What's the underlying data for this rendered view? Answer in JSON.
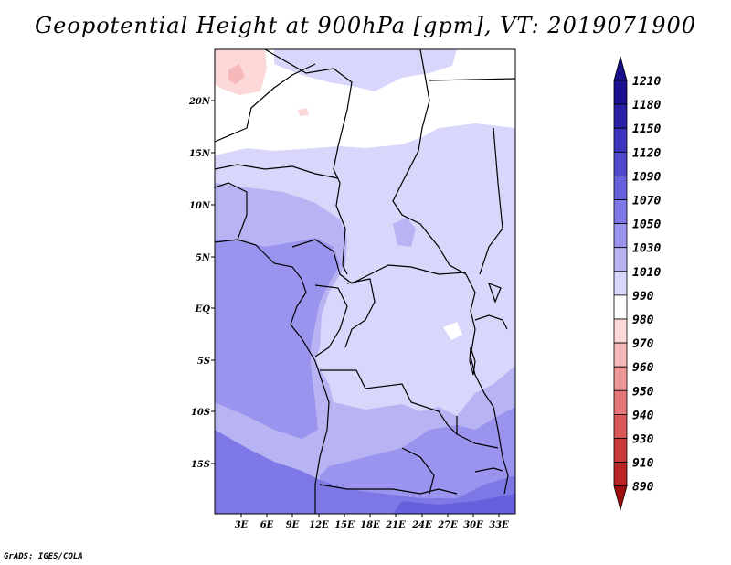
{
  "title": "Geopotential Height at 900hPa [gpm], VT: 2019071900",
  "credit": "GrADS: IGES/COLA",
  "lat_ticks": [
    "20N",
    "15N",
    "10N",
    "5N",
    "EQ",
    "5S",
    "10S",
    "15S"
  ],
  "lon_ticks": [
    "3E",
    "6E",
    "9E",
    "12E",
    "15E",
    "18E",
    "21E",
    "24E",
    "27E",
    "30E",
    "33E"
  ],
  "colorbar": {
    "levels": [
      "1210",
      "1180",
      "1150",
      "1120",
      "1090",
      "1070",
      "1050",
      "1030",
      "1010",
      "990",
      "980",
      "970",
      "960",
      "950",
      "940",
      "930",
      "910",
      "890"
    ],
    "colors": [
      "#1a1090",
      "#2a20a8",
      "#3b34bc",
      "#4d48cc",
      "#6660dc",
      "#7e78e6",
      "#9a94ee",
      "#b8b4f4",
      "#d8d6fa",
      "#ffffff",
      "#fcd8d8",
      "#f6b8b8",
      "#ee9898",
      "#e47878",
      "#d85858",
      "#c83838",
      "#b82424",
      "#a81414"
    ],
    "top_arrow_color": "#1a0f8a",
    "bottom_arrow_color": "#9e0f0f"
  }
}
